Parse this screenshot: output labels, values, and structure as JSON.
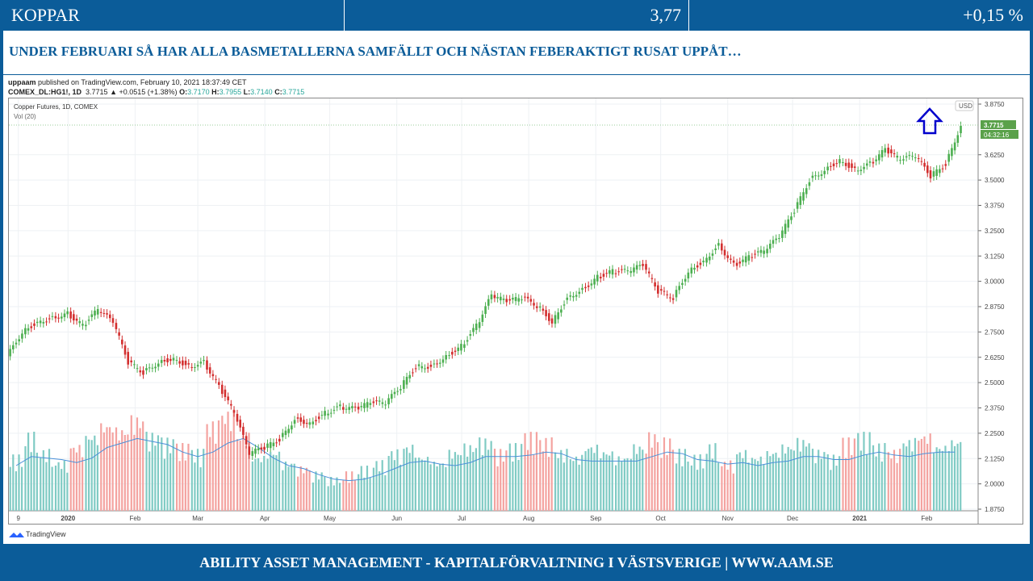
{
  "topbar": {
    "name": "KOPPAR",
    "price": "3,77",
    "change": "+0,15 %"
  },
  "headline": "UNDER FEBRUARI SÅ HAR ALLA BASMETALLERNA SAMFÄLLT OCH NÄSTAN FEBERAKTIGT RUSAT UPPÅT…",
  "publisher": {
    "user": "uppaam",
    "text": " published on TradingView.com, February 10, 2021 18:37:49 CET"
  },
  "ohlc": {
    "symbol": "COMEX_DL:HG1!, 1D",
    "last": "3.7715",
    "change": "▲ +0.0515 (+1.38%)",
    "o_label": "O:",
    "o": "3.7170",
    "h_label": "H:",
    "h": "3.7955",
    "l_label": "L:",
    "l": "3.7140",
    "c_label": "C:",
    "c": "3.7715"
  },
  "footer": "ABILITY ASSET MANAGEMENT -  KAPITALFÖRVALTNING I VÄSTSVERIGE   |   WWW.AAM.SE",
  "logo": "TradingView",
  "chart_data": {
    "type": "candlestick",
    "title": "Copper Futures, 1D, COMEX",
    "indicator": "Vol (20)",
    "currency": "USD",
    "last_price_label": "3.7715",
    "countdown_label": "04:32:16",
    "ylim": [
      1.85,
      3.9
    ],
    "y_ticks": [
      "1.8750",
      "2.0000",
      "2.1250",
      "2.2500",
      "2.3750",
      "2.5000",
      "2.6250",
      "2.7500",
      "2.8750",
      "3.0000",
      "3.1250",
      "3.2500",
      "3.3750",
      "3.5000",
      "3.6250",
      "3.8750"
    ],
    "x_ticks": [
      "9",
      "2020",
      "Feb",
      "Mar",
      "Apr",
      "May",
      "Jun",
      "Jul",
      "Aug",
      "Sep",
      "Oct",
      "Nov",
      "Dec",
      "2021",
      "Feb"
    ],
    "x_tick_dates": [
      "2019-12-09",
      "2020-01-01",
      "2020-02-01",
      "2020-03-01",
      "2020-04-01",
      "2020-05-01",
      "2020-06-01",
      "2020-07-01",
      "2020-08-01",
      "2020-09-01",
      "2020-10-01",
      "2020-11-01",
      "2020-12-01",
      "2021-01-01",
      "2021-02-01"
    ],
    "x_start": "2019-12-08",
    "x_end": "2021-02-10",
    "series_period": "weekly (approx.)",
    "closes": [
      2.75,
      2.8,
      2.82,
      2.84,
      2.78,
      2.86,
      2.8,
      2.6,
      2.55,
      2.6,
      2.62,
      2.58,
      2.6,
      2.48,
      2.35,
      2.15,
      2.18,
      2.22,
      2.32,
      2.3,
      2.35,
      2.38,
      2.37,
      2.4,
      2.4,
      2.48,
      2.58,
      2.58,
      2.63,
      2.68,
      2.78,
      2.93,
      2.9,
      2.92,
      2.88,
      2.8,
      2.92,
      2.96,
      3.02,
      3.05,
      3.05,
      3.08,
      2.95,
      2.92,
      3.05,
      3.1,
      3.18,
      3.08,
      3.12,
      3.15,
      3.22,
      3.35,
      3.5,
      3.55,
      3.6,
      3.55,
      3.58,
      3.65,
      3.6,
      3.62,
      3.52,
      3.58,
      3.7715
    ],
    "first_open": 2.63,
    "volume_relative": [
      50,
      70,
      55,
      45,
      60,
      70,
      80,
      75,
      85,
      70,
      65,
      60,
      55,
      80,
      90,
      70,
      50,
      55,
      45,
      40,
      35,
      30,
      35,
      40,
      45,
      55,
      60,
      50,
      45,
      55,
      60,
      65,
      55,
      60,
      70,
      65,
      55,
      50,
      60,
      55,
      50,
      60,
      70,
      65,
      55,
      50,
      60,
      45,
      55,
      50,
      55,
      60,
      65,
      55,
      50,
      65,
      70,
      60,
      55,
      65,
      70,
      60,
      65
    ],
    "colors": {
      "up": "#4caf50",
      "down": "#d32f2f",
      "vol_up": "#80cbc4",
      "vol_down": "#f4a3a0",
      "vol_ma": "#4a90d9",
      "arrow": "#0000cc",
      "price_label": "#5aa14a"
    }
  }
}
